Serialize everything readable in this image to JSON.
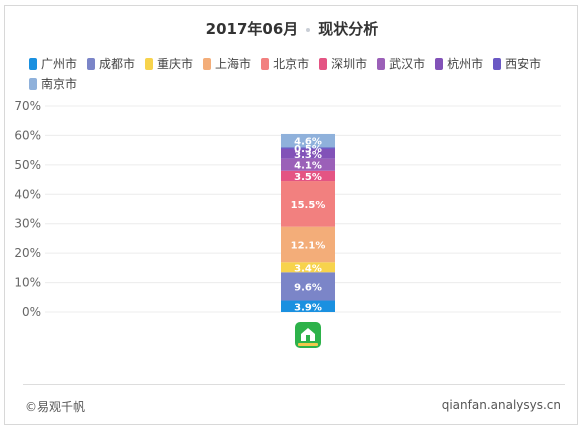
{
  "header": {
    "title_date": "2017年06月",
    "title_text": "现状分析"
  },
  "chart_data": {
    "type": "bar",
    "stacked": true,
    "categories": [
      ""
    ],
    "ylim": [
      0,
      70
    ],
    "yticks": [
      "0%",
      "10%",
      "20%",
      "30%",
      "40%",
      "50%",
      "60%",
      "70%"
    ],
    "grid": true,
    "legend_position": "top",
    "series": [
      {
        "name": "广州市",
        "values": [
          3.9
        ],
        "color": "#1a90e0",
        "label": "3.9%"
      },
      {
        "name": "成都市",
        "values": [
          9.6
        ],
        "color": "#7b85c8",
        "label": "9.6%"
      },
      {
        "name": "重庆市",
        "values": [
          3.4
        ],
        "color": "#f7d34c",
        "label": "3.4%"
      },
      {
        "name": "上海市",
        "values": [
          12.1
        ],
        "color": "#f3ad79",
        "label": "12.1%"
      },
      {
        "name": "北京市",
        "values": [
          15.5
        ],
        "color": "#f2807f",
        "label": "15.5%"
      },
      {
        "name": "深圳市",
        "values": [
          3.5
        ],
        "color": "#e45483",
        "label": "3.5%"
      },
      {
        "name": "武汉市",
        "values": [
          4.1
        ],
        "color": "#9b60b8",
        "label": "4.1%"
      },
      {
        "name": "杭州市",
        "values": [
          3.3
        ],
        "color": "#8252b8",
        "label": "3.3%"
      },
      {
        "name": "西安市",
        "values": [
          0.5
        ],
        "color": "#6a58c4",
        "label": "0.5%"
      },
      {
        "name": "南京市",
        "values": [
          4.6
        ],
        "color": "#8fb1db",
        "label": "4.6%"
      }
    ]
  },
  "app_icon": {
    "name": "house-app-icon",
    "color": "#2db24a"
  },
  "footer": {
    "source": "©易观千帆",
    "url": "qianfan.analysys.cn"
  }
}
